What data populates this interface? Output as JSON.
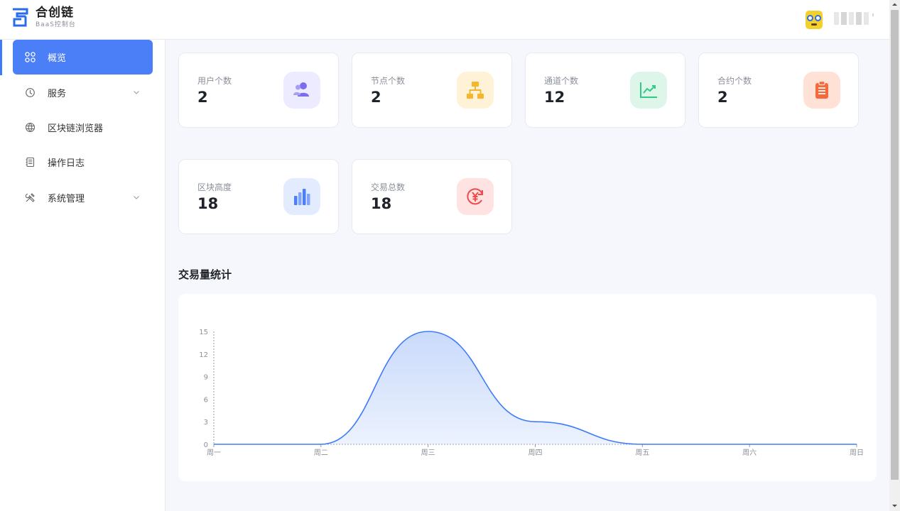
{
  "brand": {
    "title": "合创链",
    "subtitle": "BaaS控制台",
    "accent": "#4a7ff7"
  },
  "header": {
    "avatar_icon": "avatar-icon"
  },
  "sidebar": {
    "items": [
      {
        "label": "概览",
        "icon": "dashboard-grid-icon",
        "active": true,
        "expandable": false
      },
      {
        "label": "服务",
        "icon": "service-icon",
        "active": false,
        "expandable": true
      },
      {
        "label": "区块链浏览器",
        "icon": "globe-icon",
        "active": false,
        "expandable": false
      },
      {
        "label": "操作日志",
        "icon": "log-book-icon",
        "active": false,
        "expandable": false
      },
      {
        "label": "系统管理",
        "icon": "tools-icon",
        "active": false,
        "expandable": true
      }
    ]
  },
  "stats": [
    {
      "label": "用户个数",
      "value": "2",
      "icon": "users-icon",
      "color": "#7b6cf0",
      "bg": "#ecebff"
    },
    {
      "label": "节点个数",
      "value": "2",
      "icon": "network-node-icon",
      "color": "#f6b531",
      "bg": "#fff2d6"
    },
    {
      "label": "通道个数",
      "value": "12",
      "icon": "line-chart-icon",
      "color": "#32c985",
      "bg": "#ddf6e9"
    },
    {
      "label": "合约个数",
      "value": "2",
      "icon": "clipboard-icon",
      "color": "#f56a3c",
      "bg": "#ffe1d6"
    },
    {
      "label": "区块高度",
      "value": "18",
      "icon": "bar-stack-icon",
      "color": "#4a7ff7",
      "bg": "#e3ebff"
    },
    {
      "label": "交易总数",
      "value": "18",
      "icon": "yen-refresh-icon",
      "color": "#ef4a4a",
      "bg": "#ffe2e2"
    }
  ],
  "section": {
    "title": "交易量统计"
  },
  "chart_data": {
    "type": "area",
    "categories": [
      "周一",
      "周二",
      "周三",
      "周四",
      "周五",
      "周六",
      "周日"
    ],
    "values": [
      0,
      0,
      15,
      3,
      0,
      0,
      0
    ],
    "ylim": [
      0,
      15
    ],
    "yticks": [
      0,
      3,
      6,
      9,
      12,
      15
    ],
    "smooth": true,
    "line_color": "#3e7bfa",
    "fill_color": "#c9dafb",
    "grid": false,
    "title": "",
    "xlabel": "",
    "ylabel": ""
  }
}
